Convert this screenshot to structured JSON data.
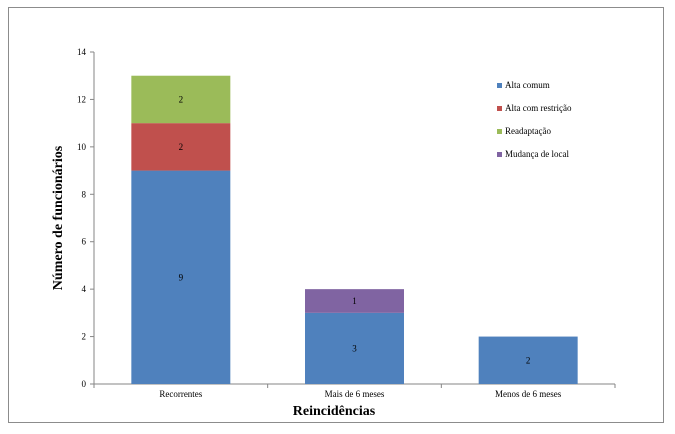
{
  "chart_data": {
    "type": "bar",
    "stacked": true,
    "categories": [
      "Recorrentes",
      "Mais de 6 meses",
      "Menos de 6 meses"
    ],
    "series": [
      {
        "name": "Alta comum",
        "values": [
          9,
          3,
          2
        ],
        "color": "#4f81bd"
      },
      {
        "name": "Alta com restrição",
        "values": [
          2,
          0,
          0
        ],
        "color": "#c0504d"
      },
      {
        "name": "Readaptação",
        "values": [
          2,
          0,
          0
        ],
        "color": "#9bbb59"
      },
      {
        "name": "Mudança de local",
        "values": [
          0,
          1,
          0
        ],
        "color": "#8064a2"
      }
    ],
    "xlabel": "Reincidências",
    "ylabel": "Número de funcionários",
    "ylim": [
      0,
      14
    ],
    "yticks": [
      0,
      2,
      4,
      6,
      8,
      10,
      12,
      14
    ],
    "grid": false,
    "legend_position": "right"
  }
}
